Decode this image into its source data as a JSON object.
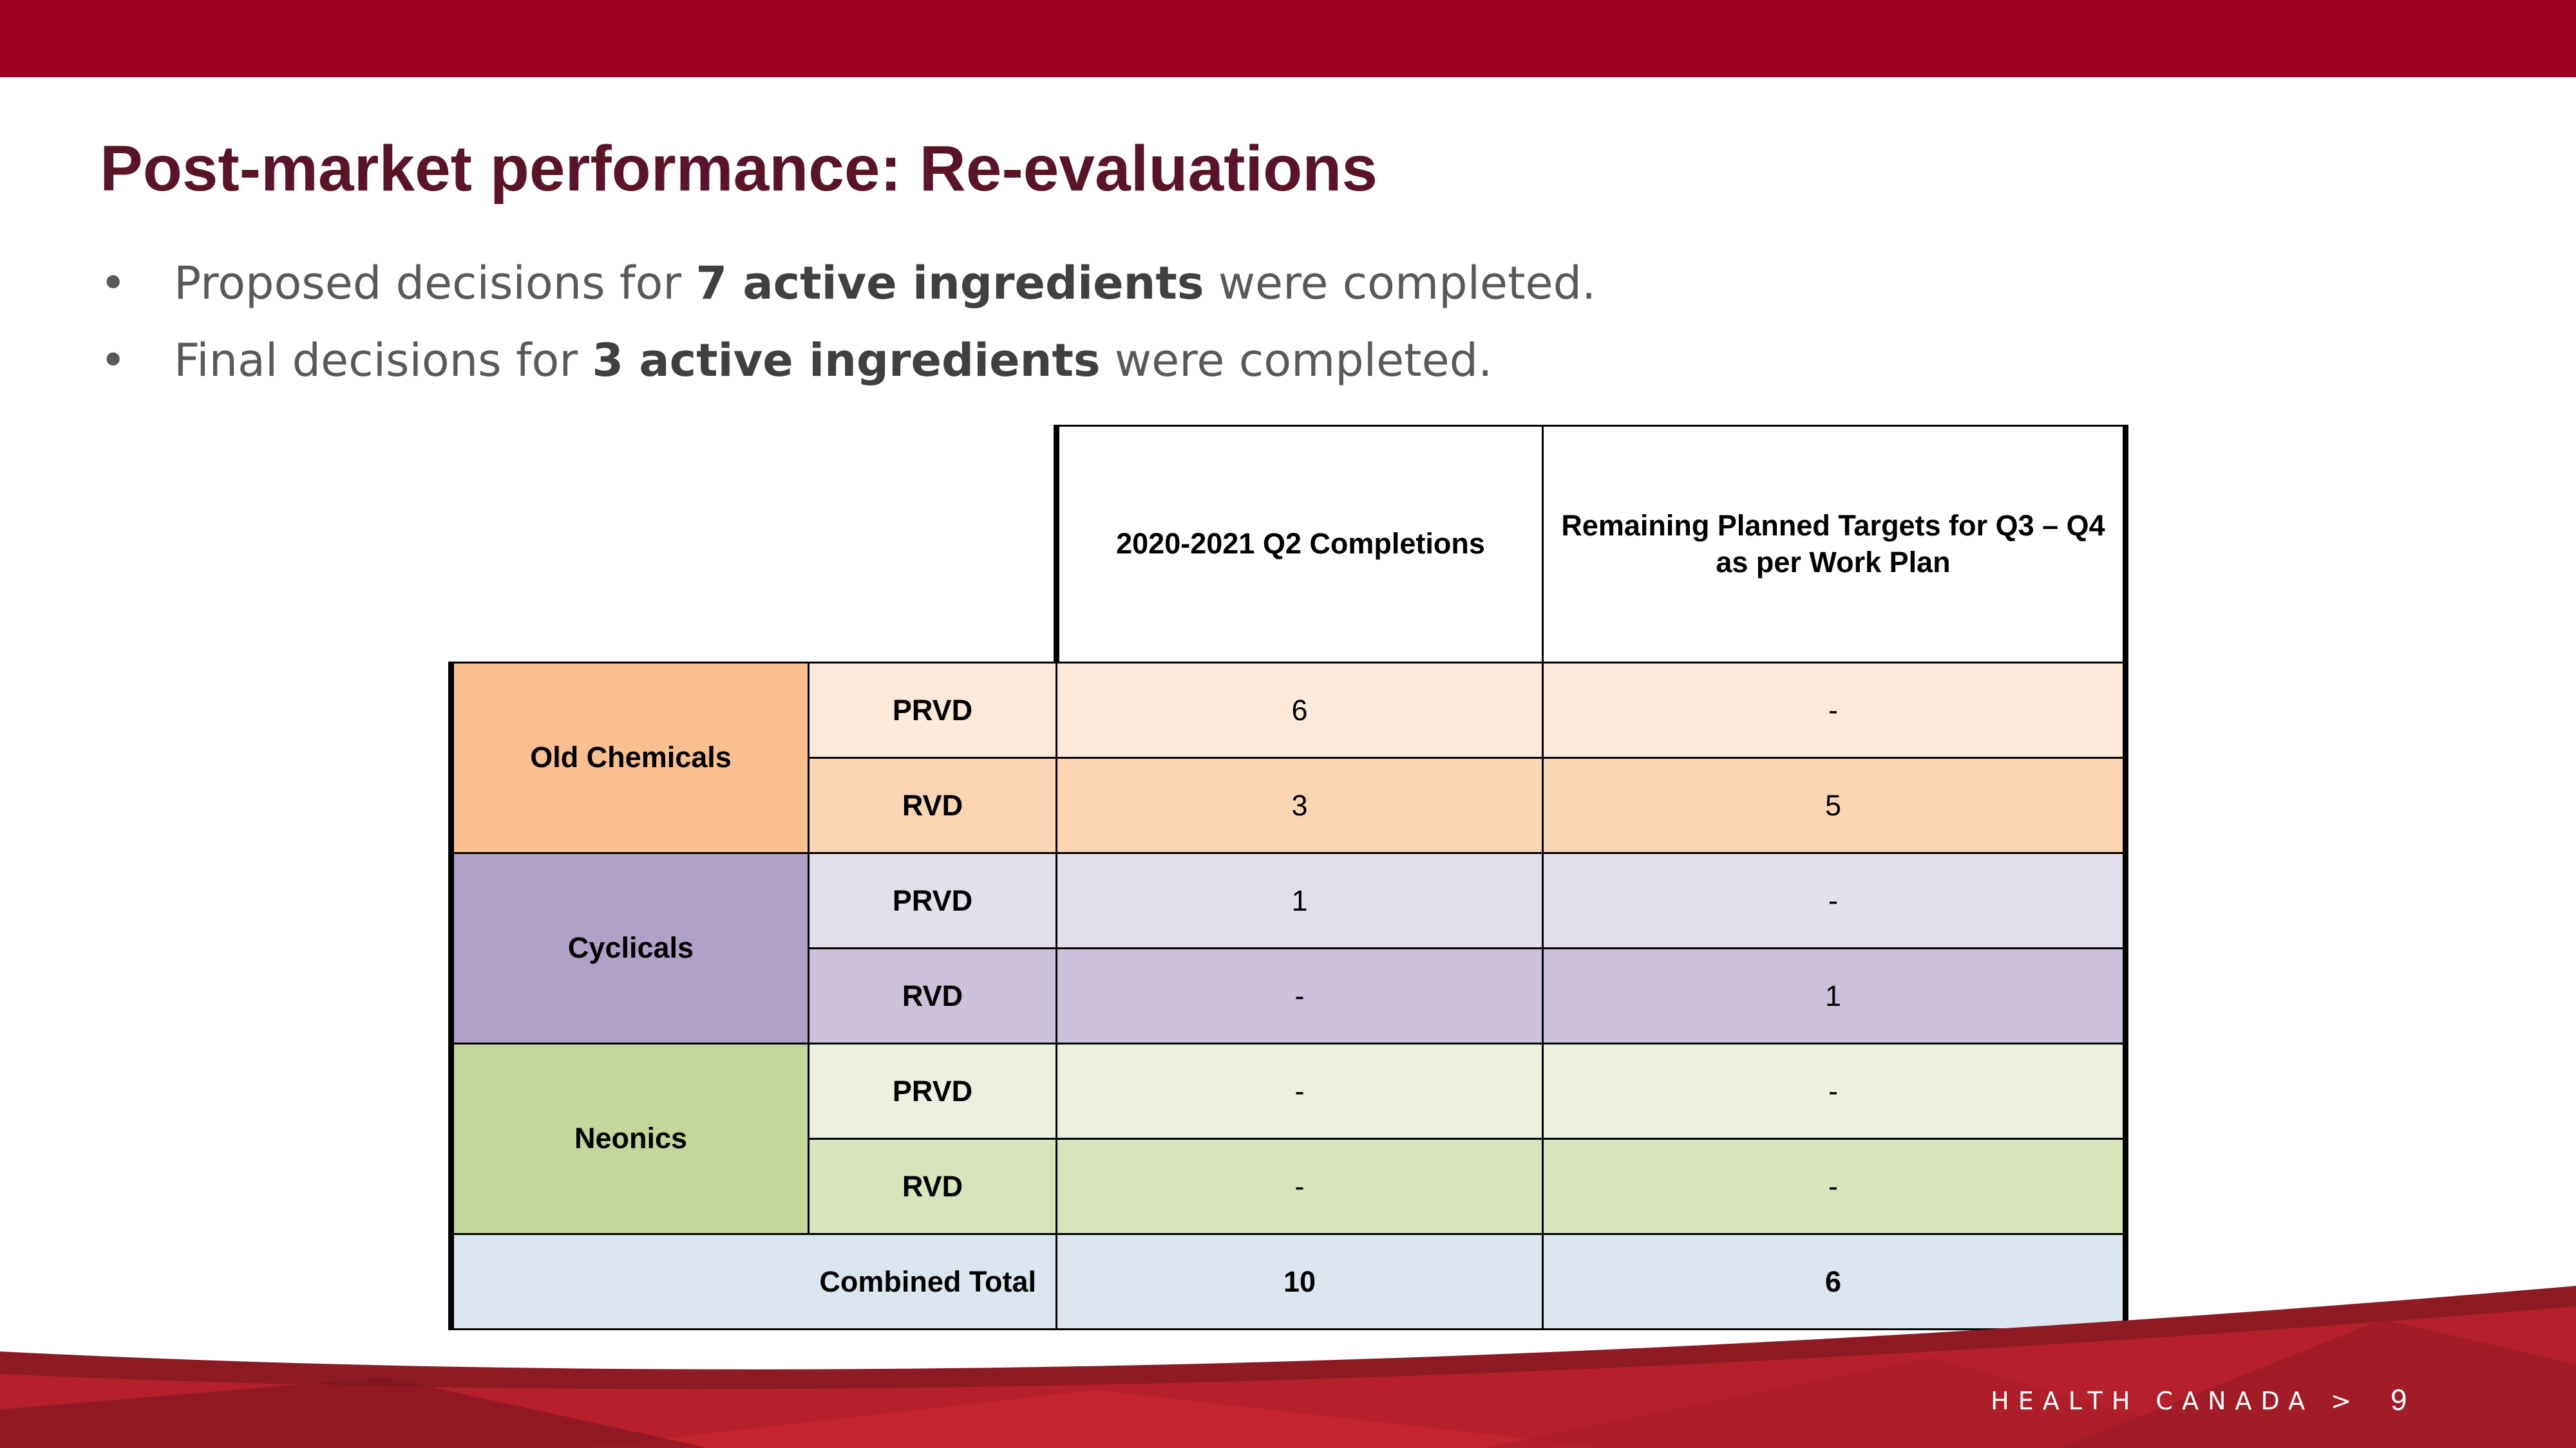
{
  "slide": {
    "title": "Post-market performance:  Re-evaluations",
    "bullets": [
      {
        "marker": "•",
        "pre": "Proposed decisions for ",
        "bold": "7 active ingredients",
        "post": " were completed."
      },
      {
        "marker": "•",
        "pre": "Final decisions for ",
        "bold": "3 active ingredients",
        "post": " were completed."
      }
    ]
  },
  "table": {
    "headers": [
      "2020-2021 Q2 Completions",
      "Remaining Planned Targets for Q3 – Q4 as per Work Plan"
    ],
    "groups": [
      {
        "name": "Old Chemicals",
        "rows": [
          {
            "type": "PRVD",
            "q2": "6",
            "remaining": "-"
          },
          {
            "type": "RVD",
            "q2": "3",
            "remaining": "5"
          }
        ]
      },
      {
        "name": "Cyclicals",
        "rows": [
          {
            "type": "PRVD",
            "q2": "1",
            "remaining": "-"
          },
          {
            "type": "RVD",
            "q2": "-",
            "remaining": "1"
          }
        ]
      },
      {
        "name": "Neonics",
        "rows": [
          {
            "type": "PRVD",
            "q2": "-",
            "remaining": "-"
          },
          {
            "type": "RVD",
            "q2": "-",
            "remaining": "-"
          }
        ]
      }
    ],
    "total": {
      "label": "Combined Total",
      "q2": "10",
      "remaining": "6"
    }
  },
  "footer": {
    "brand": "HEALTH CANADA >",
    "page": "9",
    "colors": {
      "primary": "#9b0020",
      "accent": "#c8232c"
    }
  }
}
